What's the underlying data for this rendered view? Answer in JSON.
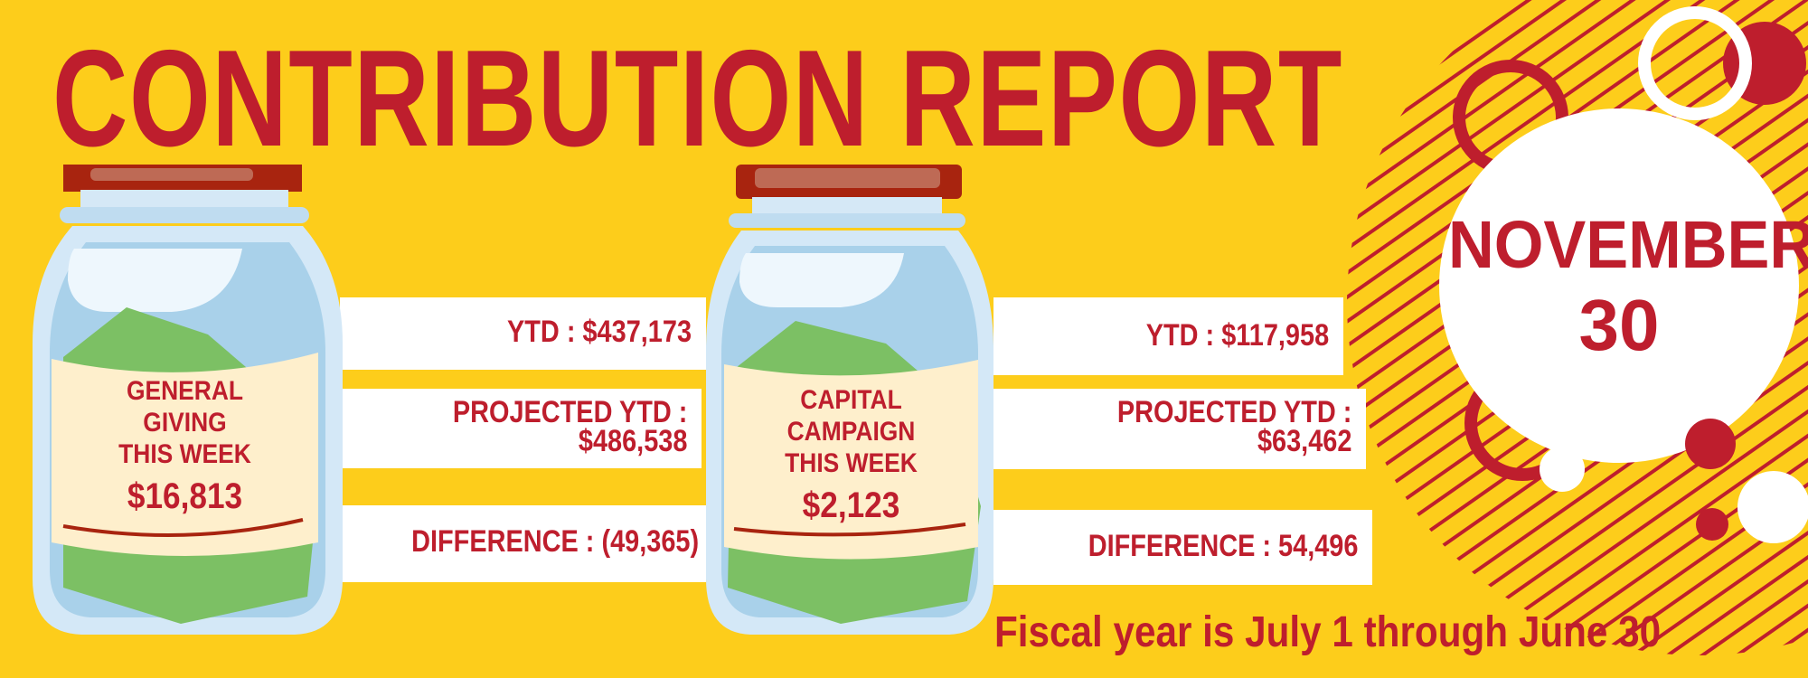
{
  "title": "CONTRIBUTION REPORT",
  "date": {
    "month": "NOVEMBER",
    "day": "30"
  },
  "jars": [
    {
      "label_lines": [
        "GENERAL",
        "GIVING",
        "THIS WEEK"
      ],
      "amount": "$16,813",
      "ytd": "YTD : $437,173",
      "projected_label": "PROJECTED YTD :",
      "projected_value": "$486,538",
      "difference": "DIFFERENCE : (49,365)"
    },
    {
      "label_lines": [
        "CAPITAL",
        "CAMPAIGN",
        "THIS WEEK"
      ],
      "amount": "$2,123",
      "ytd": "YTD : $117,958",
      "projected_label": "PROJECTED YTD :",
      "projected_value": "$63,462",
      "difference": "DIFFERENCE : 54,496"
    }
  ],
  "footer": "Fiscal year is July 1 through June 30",
  "colors": {
    "background": "#FDCD1B",
    "accent": "#BE1E2D",
    "jar_glass": "#A9D1EA",
    "label": "#FEEFCC",
    "money": "#7CC064",
    "lid": "#A8240F"
  }
}
